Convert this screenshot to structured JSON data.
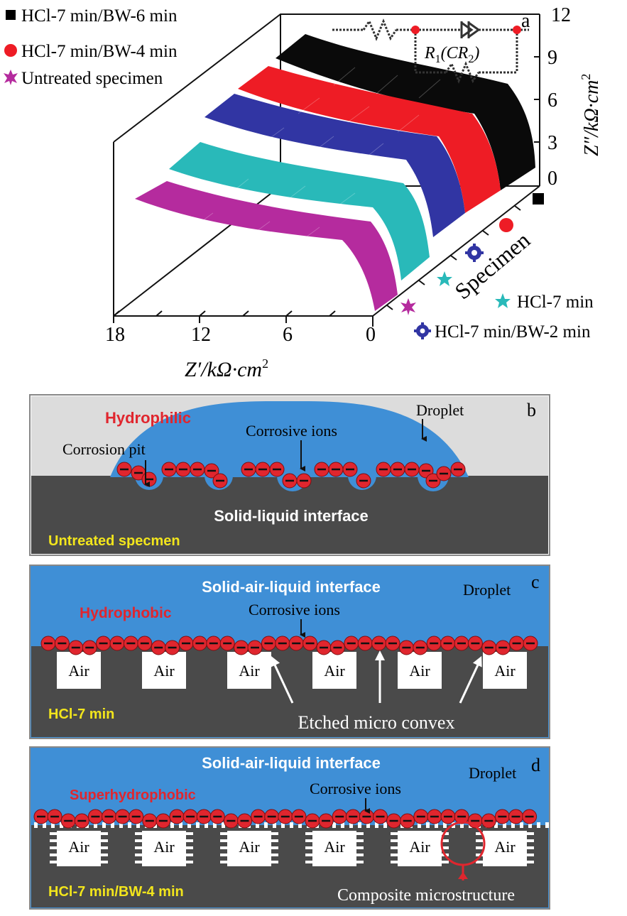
{
  "panel_a": {
    "letter": "a",
    "legend": [
      {
        "label": "HCl-7 min/BW-6 min",
        "color": "#000000",
        "marker": "square-icon"
      },
      {
        "label": "HCl-7 min/BW-4 min",
        "color": "#ee1c25",
        "marker": "circle-icon"
      },
      {
        "label": "Untreated specimen",
        "color": "#b52b9e",
        "marker": "star-icon"
      }
    ],
    "side_legend": [
      {
        "label": "HCl-7 min",
        "color": "#29b9b9",
        "marker": "star5-icon"
      },
      {
        "label": "HCl-7 min/BW-2 min",
        "color": "#3135a3",
        "marker": "gear-icon"
      }
    ],
    "x_ticks": [
      "18",
      "12",
      "6",
      "0"
    ],
    "y_ticks": [
      "12",
      "9",
      "6",
      "3",
      "0"
    ],
    "x_label": "Z′/kΩ·cm",
    "x_label_sup": "2",
    "y_label": "Z″/kΩ·cm",
    "y_label_sup": "2",
    "depth_label": "Specimen",
    "circuit_label": "R",
    "circuit_sub1": "1",
    "circuit_mid": "(CR",
    "circuit_sub2": "2",
    "circuit_end": ")",
    "colors": [
      "#000000",
      "#ee1c25",
      "#3135a3",
      "#29b9b9",
      "#b52b9e"
    ]
  },
  "panel_b": {
    "letter": "b",
    "wetting": "Hydrophilic",
    "droplet": "Droplet",
    "corrosive_ions": "Corrosive ions",
    "corrosion_pit": "Corrosion pit",
    "interface": "Solid-liquid interface",
    "specimen": "Untreated specmen"
  },
  "panel_c": {
    "letter": "c",
    "interface": "Solid-air-liquid interface",
    "droplet": "Droplet",
    "wetting": "Hydrophobic",
    "corrosive_ions": "Corrosive ions",
    "air": "Air",
    "feature": "Etched micro convex",
    "specimen": "HCl-7 min"
  },
  "panel_d": {
    "letter": "d",
    "interface": "Solid-air-liquid interface",
    "droplet": "Droplet",
    "wetting": "Superhydrophobic",
    "corrosive_ions": "Corrosive ions",
    "air": "Air",
    "feature": "Composite microstructure",
    "specimen": "HCl-7 min/BW-4 min"
  }
}
